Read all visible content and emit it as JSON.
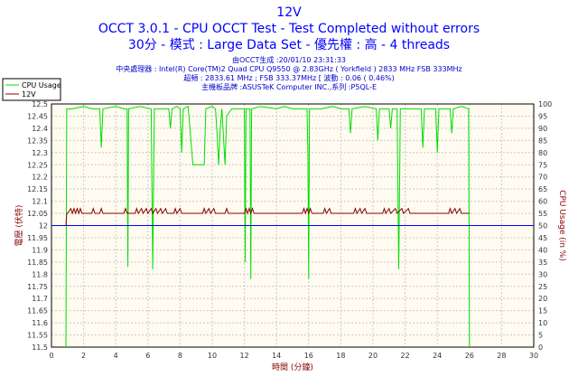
{
  "title": "12V",
  "subtitle1": "OCCT 3.0.1 - CPU OCCT Test - Test Completed without errors",
  "subtitle2": "30分 - 模式 : Large Data Set - 優先權 : 高 - 4 threads",
  "info": [
    "由OCCT生成 :20/01/10 23:31:33",
    "中央處理器 : Intel(R) Core(TM)2 Quad CPU Q9550 @ 2.83GHz ( Yorkfield ) 2833 MHz FSB 333MHz",
    "超頻 : 2833.61 MHz ; FSB 333.37MHz [ 波動 : 0.06 ( 0.46%)",
    "主機板品牌 :ASUSTeK Computer INC.,系列 :P5QL-E"
  ],
  "chart_data": {
    "type": "line",
    "xlabel": "時間 (分鐘)",
    "ylabel": "電壓 (伏特)",
    "ylabel_right": "CPU Usage (in %)",
    "xlim": [
      0,
      30
    ],
    "ylim": [
      11.5,
      12.5
    ],
    "ylim_right": [
      0,
      100
    ],
    "x_ticks": [
      "0",
      "2",
      "4",
      "6",
      "8",
      "10",
      "12",
      "14",
      "16",
      "18",
      "20",
      "22",
      "24",
      "26",
      "28",
      "30"
    ],
    "y_ticks": [
      "12.5",
      "12.45",
      "12.4",
      "12.35",
      "12.3",
      "12.25",
      "12.2",
      "12.15",
      "12.1",
      "12.05",
      "12",
      "11.95",
      "11.9",
      "11.85",
      "11.8",
      "11.75",
      "11.7",
      "11.65",
      "11.6",
      "11.55",
      "11.5"
    ],
    "y_ticks_right": [
      "100",
      "95",
      "90",
      "85",
      "80",
      "75",
      "70",
      "65",
      "60",
      "55",
      "50",
      "45",
      "40",
      "35",
      "30",
      "25",
      "20",
      "15",
      "10",
      "5",
      "0"
    ],
    "grid": true,
    "legend_position": "top-left",
    "series": [
      {
        "name": "CPU Usage",
        "axis": "right",
        "color": "#00dd00",
        "points": [
          [
            0.9,
            0
          ],
          [
            0.95,
            98
          ],
          [
            1.3,
            98
          ],
          [
            2,
            99
          ],
          [
            2.5,
            98
          ],
          [
            3,
            98
          ],
          [
            3.1,
            82
          ],
          [
            3.2,
            98
          ],
          [
            4,
            99
          ],
          [
            4.5,
            98
          ],
          [
            4.7,
            98
          ],
          [
            4.75,
            33
          ],
          [
            4.8,
            98
          ],
          [
            5.5,
            99
          ],
          [
            6.2,
            98
          ],
          [
            6.3,
            32
          ],
          [
            6.4,
            98
          ],
          [
            7.3,
            98
          ],
          [
            7.4,
            90
          ],
          [
            7.5,
            98
          ],
          [
            7.8,
            99
          ],
          [
            8.0,
            98
          ],
          [
            8.05,
            90
          ],
          [
            8.1,
            80
          ],
          [
            8.2,
            98
          ],
          [
            8.5,
            99
          ],
          [
            8.8,
            75
          ],
          [
            9.5,
            75
          ],
          [
            9.6,
            98
          ],
          [
            10,
            99
          ],
          [
            10.2,
            98
          ],
          [
            10.3,
            88
          ],
          [
            10.4,
            75
          ],
          [
            10.5,
            90
          ],
          [
            10.6,
            98
          ],
          [
            10.8,
            75
          ],
          [
            10.9,
            95
          ],
          [
            11.2,
            98
          ],
          [
            11.9,
            98
          ],
          [
            12.0,
            98
          ],
          [
            12.05,
            35
          ],
          [
            12.1,
            98
          ],
          [
            12.35,
            98
          ],
          [
            12.4,
            28
          ],
          [
            12.45,
            98
          ],
          [
            13,
            99
          ],
          [
            14,
            98
          ],
          [
            14.5,
            99
          ],
          [
            15,
            98
          ],
          [
            15.9,
            98
          ],
          [
            15.95,
            80
          ],
          [
            16.0,
            28
          ],
          [
            16.05,
            98
          ],
          [
            16.8,
            98
          ],
          [
            17.5,
            99
          ],
          [
            18,
            98
          ],
          [
            18.5,
            98
          ],
          [
            18.6,
            88
          ],
          [
            18.7,
            98
          ],
          [
            19.5,
            99
          ],
          [
            20.2,
            98
          ],
          [
            20.3,
            85
          ],
          [
            20.4,
            98
          ],
          [
            21.0,
            98
          ],
          [
            21.1,
            90
          ],
          [
            21.2,
            98
          ],
          [
            21.5,
            98
          ],
          [
            21.6,
            32
          ],
          [
            21.7,
            98
          ],
          [
            22.5,
            98
          ],
          [
            23.0,
            98
          ],
          [
            23.1,
            82
          ],
          [
            23.2,
            98
          ],
          [
            23.9,
            98
          ],
          [
            24.0,
            80
          ],
          [
            24.1,
            98
          ],
          [
            24.8,
            98
          ],
          [
            24.9,
            88
          ],
          [
            25.0,
            98
          ],
          [
            25.5,
            99
          ],
          [
            25.95,
            98
          ],
          [
            26.0,
            0
          ]
        ]
      },
      {
        "name": "12V",
        "axis": "left",
        "color": "#880000",
        "points": [
          [
            0.9,
            12.0
          ],
          [
            0.95,
            12.05
          ],
          [
            1.0,
            12.05
          ],
          [
            1.2,
            12.07
          ],
          [
            1.3,
            12.05
          ],
          [
            1.4,
            12.07
          ],
          [
            1.5,
            12.05
          ],
          [
            1.6,
            12.07
          ],
          [
            1.7,
            12.05
          ],
          [
            1.8,
            12.07
          ],
          [
            1.9,
            12.05
          ],
          [
            2.5,
            12.05
          ],
          [
            2.6,
            12.07
          ],
          [
            2.7,
            12.05
          ],
          [
            3.0,
            12.05
          ],
          [
            3.1,
            12.07
          ],
          [
            3.2,
            12.05
          ],
          [
            4.5,
            12.05
          ],
          [
            4.6,
            12.07
          ],
          [
            4.7,
            12.05
          ],
          [
            4.8,
            12.05
          ],
          [
            5.2,
            12.05
          ],
          [
            5.3,
            12.07
          ],
          [
            5.4,
            12.05
          ],
          [
            5.6,
            12.07
          ],
          [
            5.7,
            12.05
          ],
          [
            5.9,
            12.07
          ],
          [
            6.0,
            12.05
          ],
          [
            6.2,
            12.07
          ],
          [
            6.3,
            12.05
          ],
          [
            6.5,
            12.07
          ],
          [
            6.6,
            12.05
          ],
          [
            6.8,
            12.07
          ],
          [
            6.9,
            12.05
          ],
          [
            7.1,
            12.07
          ],
          [
            7.2,
            12.05
          ],
          [
            7.6,
            12.05
          ],
          [
            7.7,
            12.07
          ],
          [
            7.8,
            12.05
          ],
          [
            8.0,
            12.07
          ],
          [
            8.1,
            12.05
          ],
          [
            9.4,
            12.05
          ],
          [
            9.5,
            12.07
          ],
          [
            9.6,
            12.05
          ],
          [
            9.8,
            12.07
          ],
          [
            9.9,
            12.05
          ],
          [
            10.1,
            12.07
          ],
          [
            10.2,
            12.05
          ],
          [
            10.8,
            12.05
          ],
          [
            10.9,
            12.07
          ],
          [
            11.0,
            12.05
          ],
          [
            12.0,
            12.05
          ],
          [
            12.1,
            12.07
          ],
          [
            12.2,
            12.05
          ],
          [
            12.3,
            12.07
          ],
          [
            12.4,
            12.05
          ],
          [
            12.5,
            12.07
          ],
          [
            12.6,
            12.05
          ],
          [
            15.6,
            12.05
          ],
          [
            15.7,
            12.07
          ],
          [
            15.8,
            12.05
          ],
          [
            15.9,
            12.07
          ],
          [
            16.0,
            12.05
          ],
          [
            16.1,
            12.07
          ],
          [
            16.2,
            12.05
          ],
          [
            16.9,
            12.05
          ],
          [
            17.0,
            12.07
          ],
          [
            17.1,
            12.05
          ],
          [
            17.3,
            12.07
          ],
          [
            17.4,
            12.05
          ],
          [
            18.8,
            12.05
          ],
          [
            18.9,
            12.07
          ],
          [
            19.0,
            12.05
          ],
          [
            19.2,
            12.07
          ],
          [
            19.3,
            12.05
          ],
          [
            19.5,
            12.07
          ],
          [
            19.6,
            12.05
          ],
          [
            20.6,
            12.05
          ],
          [
            20.7,
            12.07
          ],
          [
            20.8,
            12.05
          ],
          [
            21.0,
            12.07
          ],
          [
            21.1,
            12.05
          ],
          [
            21.4,
            12.07
          ],
          [
            21.5,
            12.05
          ],
          [
            21.8,
            12.07
          ],
          [
            21.9,
            12.05
          ],
          [
            22.2,
            12.07
          ],
          [
            22.3,
            12.05
          ],
          [
            24.7,
            12.05
          ],
          [
            24.8,
            12.07
          ],
          [
            24.9,
            12.05
          ],
          [
            25.1,
            12.07
          ],
          [
            25.2,
            12.05
          ],
          [
            25.4,
            12.07
          ],
          [
            25.5,
            12.05
          ],
          [
            26.0,
            12.05
          ]
        ]
      },
      {
        "name": "",
        "axis": "left",
        "color": "#0000ff",
        "points": [
          [
            0,
            12.0
          ],
          [
            30,
            12.0
          ]
        ]
      }
    ]
  }
}
